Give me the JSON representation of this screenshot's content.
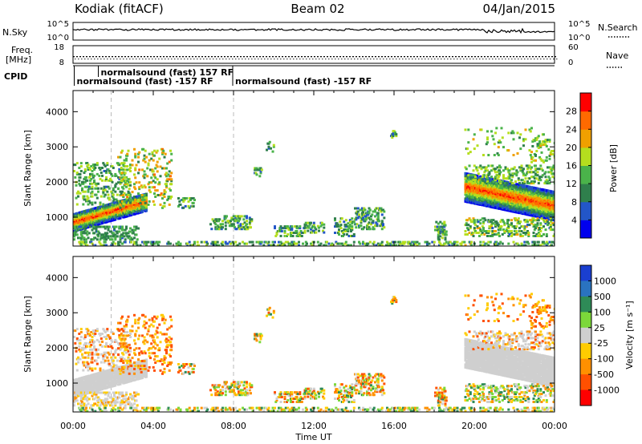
{
  "header": {
    "station": "Kodiak (fitACF)",
    "beam": "Beam 02",
    "date": "04/Jan/2015"
  },
  "top_panels": {
    "sky": {
      "left_label": "N.Sky",
      "right_label": "N.Search",
      "left_ticks": [
        "10^5",
        "10^0"
      ],
      "right_ticks": [
        "10^5",
        "10^0"
      ]
    },
    "freq": {
      "left_label_1": "Freq.",
      "left_label_2": "[MHz]",
      "right_label": "Nave",
      "left_ticks": [
        "18",
        "8"
      ],
      "right_ticks": [
        "60",
        "0"
      ]
    },
    "cpid": {
      "label": "CPID",
      "program_labels": [
        {
          "text": "normalsound (fast) -157 RF",
          "time": 0.1
        },
        {
          "text": "normalsound (fast) 157 RF",
          "time": 1.3
        },
        {
          "text": "normalsound (fast) -157 RF",
          "time": 8.0
        }
      ]
    }
  },
  "x_axis": {
    "label": "Time UT",
    "range_hours": [
      0,
      24
    ],
    "tick_hours": [
      0,
      4,
      8,
      12,
      16,
      20,
      24
    ],
    "tick_labels": [
      "00:00",
      "04:00",
      "08:00",
      "12:00",
      "16:00",
      "20:00",
      "00:00"
    ]
  },
  "legend_swatches": {
    "sky": "dotted",
    "search": "dotted"
  },
  "chart_data": [
    {
      "type": "heatmap",
      "panel": "power",
      "ylabel": "Slant Range [km]",
      "ylim": [
        180,
        4600
      ],
      "yticks": [
        1000,
        2000,
        3000,
        4000
      ],
      "colorbar": {
        "label": "Power [dB]",
        "range": [
          0,
          32
        ],
        "ticks": [
          4,
          8,
          12,
          16,
          20,
          24,
          28
        ],
        "colors": [
          "#0000ee",
          "#2356c8",
          "#2f7f4c",
          "#4ab34a",
          "#b5de1e",
          "#f0a000",
          "#ff6a00",
          "#ff0000"
        ]
      },
      "regions": [
        {
          "t_hours": [
            0.0,
            3.6
          ],
          "range_km": [
            780,
            1200
          ],
          "value": "strong"
        },
        {
          "t_hours": [
            0.0,
            2.8
          ],
          "range_km": [
            1400,
            2600
          ],
          "value": "medium"
        },
        {
          "t_hours": [
            7.5,
            9.0
          ],
          "range_km": [
            700,
            1100
          ],
          "value": "medium"
        },
        {
          "t_hours": [
            13.0,
            16.0
          ],
          "range_km": [
            600,
            1200
          ],
          "value": "weak"
        },
        {
          "t_hours": [
            19.5,
            24.0
          ],
          "range_km": [
            1100,
            1800
          ],
          "value": "strong"
        },
        {
          "t_hours": [
            19.5,
            24.0
          ],
          "range_km": [
            1800,
            2400
          ],
          "value": "medium"
        }
      ]
    },
    {
      "type": "heatmap",
      "panel": "velocity",
      "ylabel": "Slant Range [km]",
      "ylim": [
        180,
        4600
      ],
      "yticks": [
        1000,
        2000,
        3000,
        4000
      ],
      "colorbar": {
        "label": "Velocity [m s⁻¹]",
        "tick_labels": [
          "1000",
          "500",
          "100",
          "25",
          "-25",
          "-100",
          "-500",
          "-1000"
        ],
        "colors": [
          "#1a3fd0",
          "#2a73c0",
          "#2e8b57",
          "#7cd83a",
          "#cfcfcf",
          "#ffcc00",
          "#ff9000",
          "#ff5000",
          "#ff0000"
        ]
      },
      "regions": [
        {
          "t_hours": [
            0.0,
            4.0
          ],
          "range_km": [
            700,
            2100
          ],
          "value": "ground-scatter"
        },
        {
          "t_hours": [
            2.0,
            5.0
          ],
          "range_km": [
            1400,
            3200
          ],
          "value": "negative"
        },
        {
          "t_hours": [
            19.5,
            24.0
          ],
          "range_km": [
            900,
            2200
          ],
          "value": "ground-scatter"
        },
        {
          "t_hours": [
            19.5,
            24.0
          ],
          "range_km": [
            500,
            1000
          ],
          "value": "mixed"
        }
      ]
    }
  ]
}
